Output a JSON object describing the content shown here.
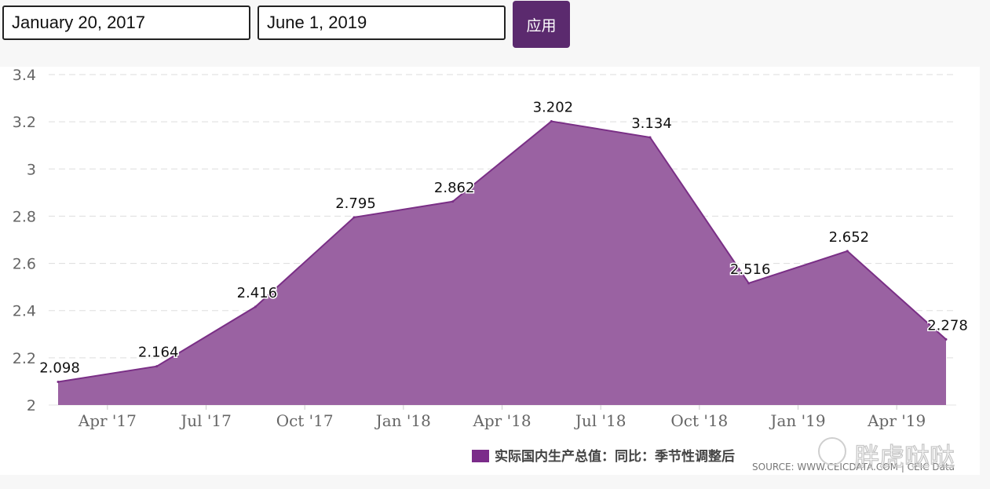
{
  "controls": {
    "start_date": "January 20, 2017",
    "end_date": "June 1, 2019",
    "apply_label": "应用"
  },
  "colors": {
    "area_fill": "#9a62a2",
    "area_stroke": "#7a2f86",
    "legend_swatch": "#7b2c8a",
    "grid": "#dddddd",
    "button_bg": "#5b2a6e"
  },
  "chart_data": {
    "type": "area",
    "x": [
      "2017-03",
      "2017-06",
      "2017-09",
      "2017-12",
      "2018-03",
      "2018-06",
      "2018-09",
      "2018-12",
      "2019-03",
      "2019-06"
    ],
    "series": [
      {
        "name": "实际国内生产总值：同比：季节性调整后",
        "values": [
          2.098,
          2.164,
          2.416,
          2.795,
          2.862,
          3.202,
          3.134,
          2.516,
          2.652,
          2.278
        ]
      }
    ],
    "data_labels": [
      "2.098",
      "2.164",
      "2.416",
      "2.795",
      "2.862",
      "3.202",
      "3.134",
      "2.516",
      "2.652",
      "2.278"
    ],
    "x_tick_labels": [
      "Apr '17",
      "Jul '17",
      "Oct '17",
      "Jan '18",
      "Apr '18",
      "Jul '18",
      "Oct '18",
      "Jan '19",
      "Apr '19"
    ],
    "y_tick_labels": [
      "2",
      "2.2",
      "2.4",
      "2.6",
      "2.8",
      "3",
      "3.2",
      "3.4"
    ],
    "y_ticks": [
      2,
      2.2,
      2.4,
      2.6,
      2.8,
      3,
      3.2,
      3.4
    ],
    "ylim": [
      2,
      3.4
    ],
    "grid": true,
    "legend_position": "bottom",
    "source": "SOURCE: WWW.CEICDATA.COM | CEIC Data"
  },
  "watermark": "胖虎哒哒"
}
